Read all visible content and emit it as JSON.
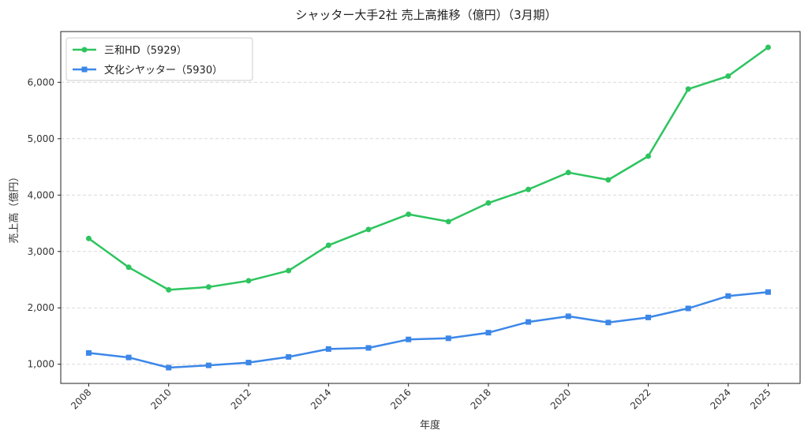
{
  "chart_data": {
    "type": "line",
    "title": "シャッター大手2社 売上高推移（億円）（3月期）",
    "xlabel": "年度",
    "ylabel": "売上高（億円）",
    "x": [
      2008,
      2009,
      2010,
      2011,
      2012,
      2013,
      2014,
      2015,
      2016,
      2017,
      2018,
      2019,
      2020,
      2021,
      2022,
      2023,
      2024,
      2025
    ],
    "xticks": [
      "2008",
      "2010",
      "2012",
      "2014",
      "2016",
      "2018",
      "2020",
      "2022",
      "2024",
      "2025"
    ],
    "yticks": [
      "1,000",
      "2,000",
      "3,000",
      "4,000",
      "5,000",
      "6,000"
    ],
    "ylim": [
      660,
      6900
    ],
    "xlim": [
      2007.3,
      2025.8
    ],
    "grid": "y-dashed",
    "legend": "top-left",
    "series": [
      {
        "name": "三和HD（5929）",
        "color": "#2dc45e",
        "marker": "circle",
        "values": [
          3230,
          2720,
          2320,
          2370,
          2480,
          2660,
          3110,
          3390,
          3660,
          3530,
          3860,
          4100,
          4400,
          4270,
          4690,
          5880,
          6110,
          6620
        ]
      },
      {
        "name": "文化シヤッター（5930）",
        "color": "#3c87e8",
        "marker": "square",
        "values": [
          1200,
          1120,
          940,
          980,
          1030,
          1130,
          1270,
          1290,
          1440,
          1460,
          1560,
          1750,
          1850,
          1740,
          1830,
          1990,
          2210,
          2280
        ]
      }
    ]
  }
}
